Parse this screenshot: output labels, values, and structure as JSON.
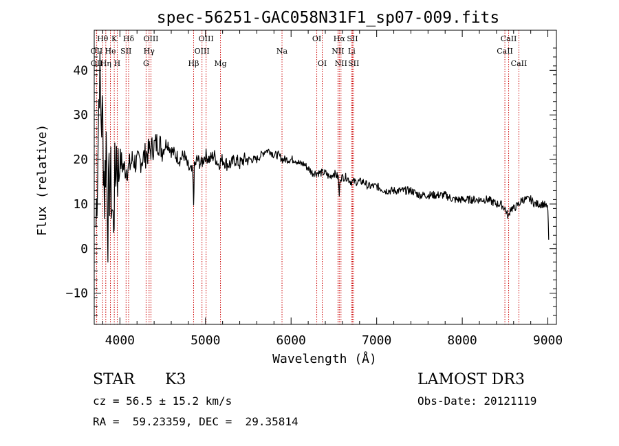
{
  "chart_data": {
    "type": "line",
    "title": "spec-56251-GAC058N31F1_sp07-009.fits",
    "xlabel": "Wavelength (Å)",
    "ylabel": "Flux (relative)",
    "xlim": [
      3700,
      9100
    ],
    "ylim": [
      -17,
      49
    ],
    "xticks": [
      4000,
      5000,
      6000,
      7000,
      8000,
      9000
    ],
    "yticks": [
      -10,
      0,
      10,
      20,
      30,
      40
    ],
    "xtick_labels": [
      "4000",
      "5000",
      "6000",
      "7000",
      "8000",
      "9000"
    ],
    "ytick_labels": [
      "−10",
      "0",
      "10",
      "20",
      "30",
      "40"
    ],
    "series": [
      {
        "name": "flux",
        "x": [
          3720,
          3740,
          3760,
          3780,
          3800,
          3820,
          3840,
          3860,
          3880,
          3900,
          3920,
          3940,
          3960,
          3980,
          4000,
          4050,
          4100,
          4150,
          4200,
          4250,
          4300,
          4350,
          4400,
          4450,
          4500,
          4550,
          4600,
          4650,
          4700,
          4750,
          4800,
          4850,
          4861,
          4870,
          4900,
          4950,
          5000,
          5050,
          5100,
          5150,
          5200,
          5250,
          5300,
          5350,
          5400,
          5450,
          5500,
          5550,
          5600,
          5650,
          5700,
          5750,
          5800,
          5850,
          5900,
          5950,
          6000,
          6050,
          6100,
          6150,
          6200,
          6250,
          6300,
          6350,
          6400,
          6450,
          6500,
          6550,
          6563,
          6575,
          6600,
          6650,
          6700,
          6750,
          6800,
          6850,
          6900,
          6950,
          7000,
          7100,
          7200,
          7300,
          7400,
          7500,
          7600,
          7700,
          7800,
          7900,
          8000,
          8100,
          8200,
          8300,
          8400,
          8450,
          8500,
          8520,
          8542,
          8560,
          8600,
          8662,
          8700,
          8750,
          8800,
          8850,
          8900,
          8950,
          9000,
          9010
        ],
        "y": [
          5,
          20,
          40,
          30,
          28,
          12,
          25,
          6,
          15,
          13,
          5,
          14,
          22,
          17,
          20,
          18,
          18,
          20,
          19,
          20,
          21,
          22,
          23,
          24,
          22,
          24,
          22,
          21,
          20,
          21,
          18,
          17,
          10,
          18,
          20,
          19,
          21,
          20,
          21,
          19,
          20,
          19,
          19,
          20,
          19,
          20,
          20,
          20,
          20,
          21,
          22,
          22,
          21,
          21,
          20,
          20,
          20,
          20,
          19,
          19,
          18,
          17,
          17,
          17,
          17,
          16,
          17,
          16,
          12,
          16,
          16,
          16,
          15,
          15,
          15,
          15,
          14,
          14,
          14,
          13,
          13,
          13,
          13,
          12,
          12,
          12,
          12,
          11,
          11,
          11,
          11,
          11,
          10,
          10,
          9,
          8,
          7,
          9,
          9,
          10,
          11,
          11,
          11,
          10,
          10,
          10,
          9,
          2
        ]
      }
    ],
    "spectral_lines": [
      {
        "label": "Hθ",
        "x": 3798,
        "row": 1
      },
      {
        "label": "OII",
        "x": 3727,
        "row": 2
      },
      {
        "label": "OII",
        "x": 3729,
        "row": 3
      },
      {
        "label": "K",
        "x": 3934,
        "row": 1
      },
      {
        "label": "He",
        "x": 3889,
        "row": 2
      },
      {
        "label": "Hη",
        "x": 3835,
        "row": 3
      },
      {
        "label": "Hδ",
        "x": 4102,
        "row": 1
      },
      {
        "label": "SII",
        "x": 4072,
        "row": 2
      },
      {
        "label": "H",
        "x": 3969,
        "row": 3
      },
      {
        "label": "OIII",
        "x": 4363,
        "row": 1
      },
      {
        "label": "Hγ",
        "x": 4341,
        "row": 2
      },
      {
        "label": "G",
        "x": 4306,
        "row": 3
      },
      {
        "label": "Hβ",
        "x": 4861,
        "row": 3
      },
      {
        "label": "OIII",
        "x": 4959,
        "row": 2
      },
      {
        "label": "OIII",
        "x": 5007,
        "row": 1
      },
      {
        "label": "Mg",
        "x": 5175,
        "row": 3
      },
      {
        "label": "Na",
        "x": 5894,
        "row": 2
      },
      {
        "label": "OI",
        "x": 6300,
        "row": 1
      },
      {
        "label": "OI",
        "x": 6364,
        "row": 3
      },
      {
        "label": "Hα",
        "x": 6563,
        "row": 1
      },
      {
        "label": "NII",
        "x": 6548,
        "row": 2
      },
      {
        "label": "NII",
        "x": 6583,
        "row": 3
      },
      {
        "label": "SII",
        "x": 6717,
        "row": 1
      },
      {
        "label": "Li",
        "x": 6708,
        "row": 2
      },
      {
        "label": "SII",
        "x": 6731,
        "row": 3
      },
      {
        "label": "CaII",
        "x": 8542,
        "row": 1
      },
      {
        "label": "CaII",
        "x": 8498,
        "row": 2
      },
      {
        "label": "CaII",
        "x": 8662,
        "row": 3
      }
    ]
  },
  "info": {
    "class": "STAR",
    "subclass": "K3",
    "survey": "LAMOST DR3",
    "cz": "cz = 56.5 ± 15.2 km/s",
    "obs_date": "Obs-Date: 20121119",
    "radec": "RA =  59.23359, DEC =  29.35814"
  },
  "colors": {
    "line": "#000000",
    "marker": "#cc0000"
  }
}
